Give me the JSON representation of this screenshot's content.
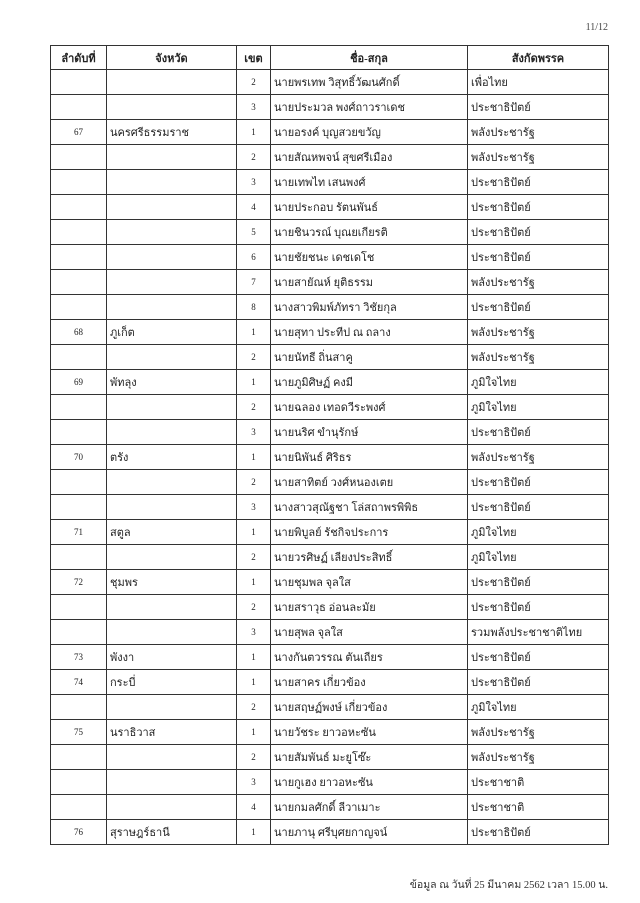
{
  "page_number": "11/12",
  "headers": [
    "ลำดับที่",
    "จังหวัด",
    "เขต",
    "ชื่อ-สกุล",
    "สังกัดพรรค"
  ],
  "rows": [
    [
      "",
      "",
      "2",
      "นายพรเทพ วิสุทธิ์วัฒนศักดิ์",
      "เพื่อไทย"
    ],
    [
      "",
      "",
      "3",
      "นายประมวล พงศ์ถาวราเดช",
      "ประชาธิปัตย์"
    ],
    [
      "67",
      "นครศรีธรรมราช",
      "1",
      "นายอรงค์ บุญสวยขวัญ",
      "พลังประชารัฐ"
    ],
    [
      "",
      "",
      "2",
      "นายสัณหพจน์ สุขศรีเมือง",
      "พลังประชารัฐ"
    ],
    [
      "",
      "",
      "3",
      "นายเทพไท เสนพงศ์",
      "ประชาธิปัตย์"
    ],
    [
      "",
      "",
      "4",
      "นายประกอบ รัตนพันธ์",
      "ประชาธิปัตย์"
    ],
    [
      "",
      "",
      "5",
      "นายชินวรณ์ บุณยเกียรติ",
      "ประชาธิปัตย์"
    ],
    [
      "",
      "",
      "6",
      "นายชัยชนะ เดชเดโช",
      "ประชาธิปัตย์"
    ],
    [
      "",
      "",
      "7",
      "นายสายัณห์ ยุติธรรม",
      "พลังประชารัฐ"
    ],
    [
      "",
      "",
      "8",
      "นางสาวพิมพ์ภัทรา วิชัยกุล",
      "ประชาธิปัตย์"
    ],
    [
      "68",
      "ภูเก็ต",
      "1",
      "นายสุทา ประทีป ณ ถลาง",
      "พลังประชารัฐ"
    ],
    [
      "",
      "",
      "2",
      "นายนัทธี ถิ่นสาคู",
      "พลังประชารัฐ"
    ],
    [
      "69",
      "พัทลุง",
      "1",
      "นายภูมิศิษฏ์ คงมี",
      "ภูมิใจไทย"
    ],
    [
      "",
      "",
      "2",
      "นายฉลอง เทอดวีระพงศ์",
      "ภูมิใจไทย"
    ],
    [
      "",
      "",
      "3",
      "นายนริศ ขำนุรักษ์",
      "ประชาธิปัตย์"
    ],
    [
      "70",
      "ตรัง",
      "1",
      "นายนิพันธ์ ศิริธร",
      "พลังประชารัฐ"
    ],
    [
      "",
      "",
      "2",
      "นายสาทิตย์ วงศ์หนองเตย",
      "ประชาธิปัตย์"
    ],
    [
      "",
      "",
      "3",
      "นางสาวสุณัฐชา โล่สถาพรพิพิธ",
      "ประชาธิปัตย์"
    ],
    [
      "71",
      "สตูล",
      "1",
      "นายพิบูลย์ รัชกิจประการ",
      "ภูมิใจไทย"
    ],
    [
      "",
      "",
      "2",
      "นายวรศิษฏ์ เลียงประสิทธิ์",
      "ภูมิใจไทย"
    ],
    [
      "72",
      "ชุมพร",
      "1",
      "นายชุมพล จุลใส",
      "ประชาธิปัตย์"
    ],
    [
      "",
      "",
      "2",
      "นายสราวุธ อ่อนละมัย",
      "ประชาธิปัตย์"
    ],
    [
      "",
      "",
      "3",
      "นายสุพล จุลใส",
      "รวมพลังประชาชาติไทย"
    ],
    [
      "73",
      "พังงา",
      "1",
      "นางกันตวรรณ ตันเถียร",
      "ประชาธิปัตย์"
    ],
    [
      "74",
      "กระบี่",
      "1",
      "นายสาคร เกี่ยวข้อง",
      "ประชาธิปัตย์"
    ],
    [
      "",
      "",
      "2",
      "นายสฤษฏ์พงษ์ เกี่ยวข้อง",
      "ภูมิใจไทย"
    ],
    [
      "75",
      "นราธิวาส",
      "1",
      "นายวัชระ ยาวอหะซัน",
      "พลังประชารัฐ"
    ],
    [
      "",
      "",
      "2",
      "นายสัมพันธ์ มะยูโซ๊ะ",
      "พลังประชารัฐ"
    ],
    [
      "",
      "",
      "3",
      "นายกูเฮง ยาวอหะซัน",
      "ประชาชาติ"
    ],
    [
      "",
      "",
      "4",
      "นายกมลศักดิ์ ลีวาเมาะ",
      "ประชาชาติ"
    ],
    [
      "76",
      "สุราษฎร์ธานี",
      "1",
      "นายภานุ ศรีบุศยกาญจน์",
      "ประชาธิปัตย์"
    ]
  ],
  "footer": "ข้อมูล ณ วันที่ 25 มีนาคม 2562 เวลา 15.00 น."
}
